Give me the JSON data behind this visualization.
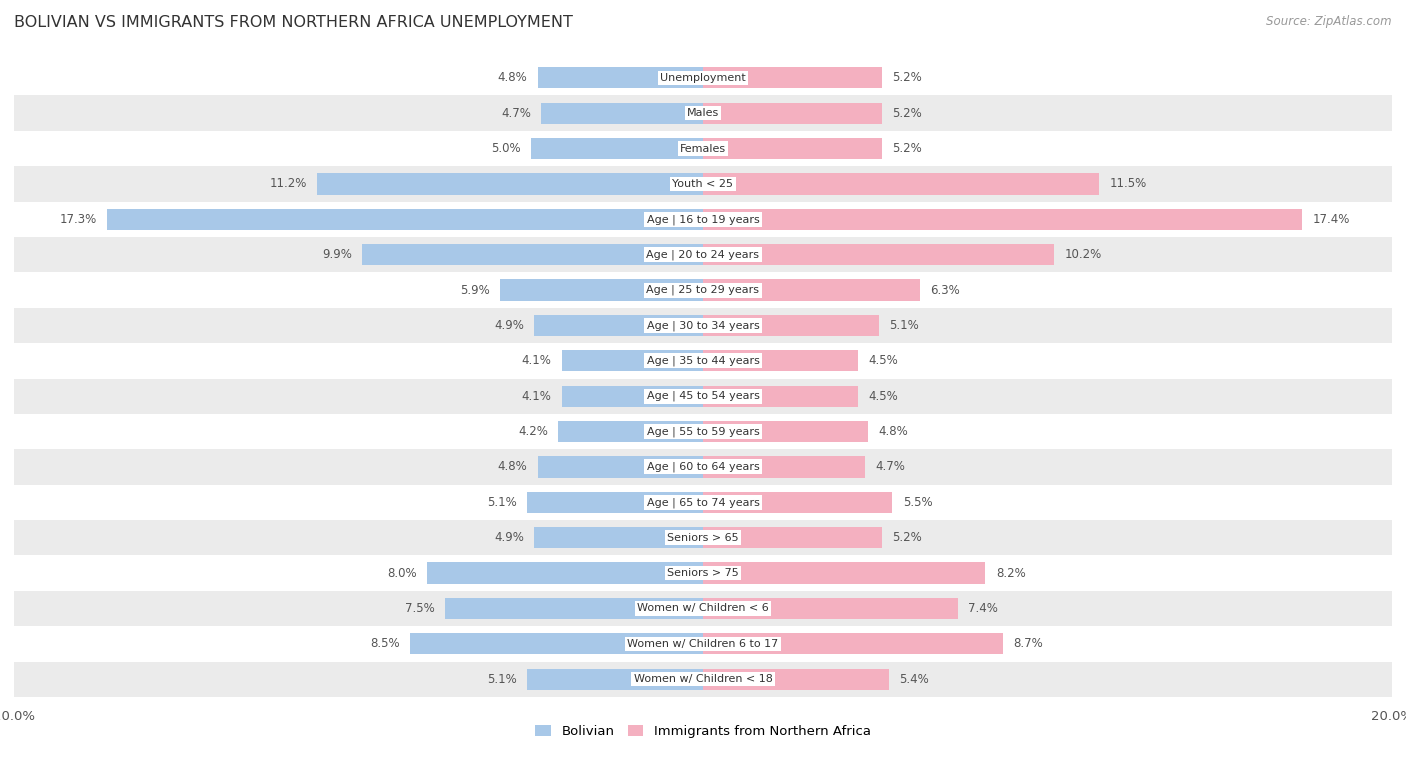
{
  "title": "BOLIVIAN VS IMMIGRANTS FROM NORTHERN AFRICA UNEMPLOYMENT",
  "source": "Source: ZipAtlas.com",
  "categories": [
    "Unemployment",
    "Males",
    "Females",
    "Youth < 25",
    "Age | 16 to 19 years",
    "Age | 20 to 24 years",
    "Age | 25 to 29 years",
    "Age | 30 to 34 years",
    "Age | 35 to 44 years",
    "Age | 45 to 54 years",
    "Age | 55 to 59 years",
    "Age | 60 to 64 years",
    "Age | 65 to 74 years",
    "Seniors > 65",
    "Seniors > 75",
    "Women w/ Children < 6",
    "Women w/ Children 6 to 17",
    "Women w/ Children < 18"
  ],
  "bolivian": [
    4.8,
    4.7,
    5.0,
    11.2,
    17.3,
    9.9,
    5.9,
    4.9,
    4.1,
    4.1,
    4.2,
    4.8,
    5.1,
    4.9,
    8.0,
    7.5,
    8.5,
    5.1
  ],
  "northern_africa": [
    5.2,
    5.2,
    5.2,
    11.5,
    17.4,
    10.2,
    6.3,
    5.1,
    4.5,
    4.5,
    4.8,
    4.7,
    5.5,
    5.2,
    8.2,
    7.4,
    8.7,
    5.4
  ],
  "bolivian_color": "#a8c8e8",
  "northern_africa_color": "#f4b0c0",
  "row_colors": [
    "#ffffff",
    "#ebebeb"
  ],
  "background_color": "#ffffff",
  "xlim": 20.0,
  "legend_bolivian": "Bolivian",
  "legend_northern_africa": "Immigrants from Northern Africa",
  "bar_height": 0.6
}
